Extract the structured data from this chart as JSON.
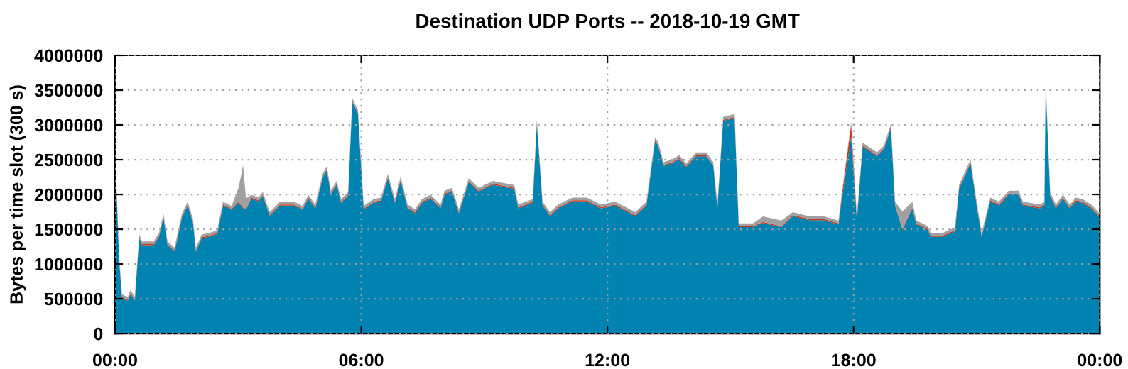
{
  "chart_data": {
    "type": "area",
    "title": "Destination UDP Ports -- 2018-10-19 GMT",
    "ylabel": "Bytes per time slot (300 s)",
    "stacked": true,
    "grid": true,
    "legend": false,
    "x": [
      0.03,
      0.1,
      0.17,
      0.31,
      0.38,
      0.48,
      0.59,
      0.66,
      0.94,
      1.07,
      1.18,
      1.28,
      1.45,
      1.63,
      1.77,
      1.9,
      1.97,
      2.11,
      2.29,
      2.49,
      2.63,
      2.84,
      3.01,
      3.12,
      3.19,
      3.32,
      3.5,
      3.6,
      3.77,
      4.02,
      4.36,
      4.57,
      4.71,
      4.88,
      5.06,
      5.16,
      5.26,
      5.4,
      5.51,
      5.68,
      5.78,
      5.92,
      6.06,
      6.3,
      6.48,
      6.65,
      6.82,
      6.96,
      7.13,
      7.31,
      7.48,
      7.69,
      7.93,
      8.03,
      8.21,
      8.38,
      8.62,
      8.86,
      9.21,
      9.73,
      9.83,
      10.18,
      10.28,
      10.42,
      10.6,
      10.8,
      11.15,
      11.5,
      11.84,
      12.19,
      12.68,
      12.95,
      13.16,
      13.23,
      13.37,
      13.58,
      13.75,
      13.92,
      14.16,
      14.41,
      14.58,
      14.68,
      14.82,
      15.1,
      15.2,
      15.55,
      15.79,
      16.24,
      16.52,
      16.93,
      17.28,
      17.63,
      17.73,
      17.94,
      18.08,
      18.22,
      18.57,
      18.74,
      18.91,
      19.01,
      19.19,
      19.43,
      19.53,
      19.81,
      19.88,
      20.16,
      20.47,
      20.57,
      20.85,
      20.99,
      21.12,
      21.33,
      21.54,
      21.78,
      22.02,
      22.13,
      22.54,
      22.65,
      22.68,
      22.79,
      22.93,
      23.1,
      23.27,
      23.41,
      23.58,
      23.79,
      24.0
    ],
    "series": [
      {
        "color": "#0083b0",
        "values": [
          2140000,
          1060000,
          510000,
          470000,
          570000,
          470000,
          1370000,
          1270000,
          1270000,
          1390000,
          1670000,
          1270000,
          1180000,
          1670000,
          1840000,
          1590000,
          1180000,
          1370000,
          1390000,
          1430000,
          1840000,
          1780000,
          1880000,
          1800000,
          1780000,
          1940000,
          1900000,
          1980000,
          1690000,
          1840000,
          1840000,
          1780000,
          1940000,
          1800000,
          2240000,
          2350000,
          2000000,
          2140000,
          1880000,
          1980000,
          3330000,
          3160000,
          1780000,
          1880000,
          1900000,
          2240000,
          1880000,
          2200000,
          1800000,
          1730000,
          1880000,
          1940000,
          1800000,
          2000000,
          2040000,
          1730000,
          2180000,
          2040000,
          2140000,
          2080000,
          1800000,
          1880000,
          3020000,
          1840000,
          1690000,
          1800000,
          1900000,
          1900000,
          1800000,
          1840000,
          1690000,
          1840000,
          2760000,
          2710000,
          2410000,
          2450000,
          2510000,
          2390000,
          2550000,
          2550000,
          2410000,
          1800000,
          3060000,
          3100000,
          1530000,
          1530000,
          1590000,
          1530000,
          1690000,
          1630000,
          1630000,
          1570000,
          2000000,
          2830000,
          1630000,
          2690000,
          2550000,
          2650000,
          2960000,
          1840000,
          1490000,
          1800000,
          1570000,
          1490000,
          1390000,
          1390000,
          1470000,
          2080000,
          2450000,
          1880000,
          1390000,
          1900000,
          1840000,
          2000000,
          2000000,
          1840000,
          1800000,
          1840000,
          3590000,
          1980000,
          1800000,
          1940000,
          1800000,
          1900000,
          1880000,
          1800000,
          1670000
        ]
      },
      {
        "color": "#d03010",
        "values": [
          15000,
          15000,
          15000,
          15000,
          15000,
          15000,
          15000,
          15000,
          15000,
          15000,
          15000,
          15000,
          15000,
          15000,
          15000,
          15000,
          15000,
          15000,
          15000,
          15000,
          15000,
          15000,
          15000,
          15000,
          15000,
          15000,
          15000,
          15000,
          15000,
          15000,
          15000,
          15000,
          15000,
          15000,
          15000,
          15000,
          15000,
          15000,
          15000,
          15000,
          15000,
          15000,
          15000,
          15000,
          15000,
          15000,
          15000,
          15000,
          15000,
          15000,
          15000,
          15000,
          15000,
          15000,
          15000,
          15000,
          15000,
          15000,
          15000,
          15000,
          15000,
          15000,
          15000,
          15000,
          15000,
          15000,
          15000,
          15000,
          15000,
          15000,
          15000,
          15000,
          15000,
          15000,
          15000,
          15000,
          15000,
          15000,
          15000,
          15000,
          15000,
          15000,
          15000,
          15000,
          15000,
          15000,
          15000,
          15000,
          15000,
          15000,
          15000,
          15000,
          60000,
          170000,
          15000,
          15000,
          15000,
          15000,
          15000,
          15000,
          15000,
          15000,
          15000,
          15000,
          15000,
          15000,
          15000,
          15000,
          15000,
          15000,
          15000,
          15000,
          15000,
          15000,
          15000,
          15000,
          15000,
          15000,
          15000,
          15000,
          15000,
          15000,
          15000,
          15000,
          15000,
          15000,
          15000
        ]
      },
      {
        "color": "#a0a0a0",
        "values": [
          40000,
          40000,
          40000,
          40000,
          40000,
          40000,
          40000,
          40000,
          40000,
          40000,
          40000,
          40000,
          40000,
          40000,
          40000,
          40000,
          40000,
          40000,
          40000,
          40000,
          40000,
          40000,
          200000,
          600000,
          150000,
          40000,
          40000,
          40000,
          40000,
          40000,
          40000,
          40000,
          40000,
          40000,
          40000,
          40000,
          40000,
          40000,
          40000,
          40000,
          40000,
          40000,
          40000,
          40000,
          40000,
          40000,
          40000,
          40000,
          40000,
          40000,
          40000,
          40000,
          40000,
          40000,
          40000,
          40000,
          40000,
          40000,
          40000,
          40000,
          40000,
          40000,
          40000,
          40000,
          40000,
          40000,
          40000,
          40000,
          40000,
          40000,
          40000,
          40000,
          40000,
          40000,
          40000,
          40000,
          40000,
          40000,
          40000,
          40000,
          40000,
          40000,
          40000,
          40000,
          40000,
          40000,
          80000,
          80000,
          40000,
          40000,
          40000,
          40000,
          40000,
          40000,
          40000,
          40000,
          40000,
          40000,
          40000,
          40000,
          250000,
          80000,
          40000,
          40000,
          40000,
          40000,
          40000,
          40000,
          40000,
          40000,
          40000,
          40000,
          40000,
          40000,
          40000,
          40000,
          40000,
          40000,
          40000,
          40000,
          40000,
          40000,
          40000,
          40000,
          40000,
          40000,
          40000
        ]
      }
    ],
    "xlim": [
      0,
      24
    ],
    "xticks": [
      {
        "value": 0,
        "label": "00:00"
      },
      {
        "value": 6,
        "label": "06:00"
      },
      {
        "value": 12,
        "label": "12:00"
      },
      {
        "value": 18,
        "label": "18:00"
      },
      {
        "value": 24,
        "label": "00:00"
      }
    ],
    "ylim": [
      0,
      4000000
    ],
    "yticks": [
      0,
      500000,
      1000000,
      1500000,
      2000000,
      2500000,
      3000000,
      3500000,
      4000000
    ]
  }
}
